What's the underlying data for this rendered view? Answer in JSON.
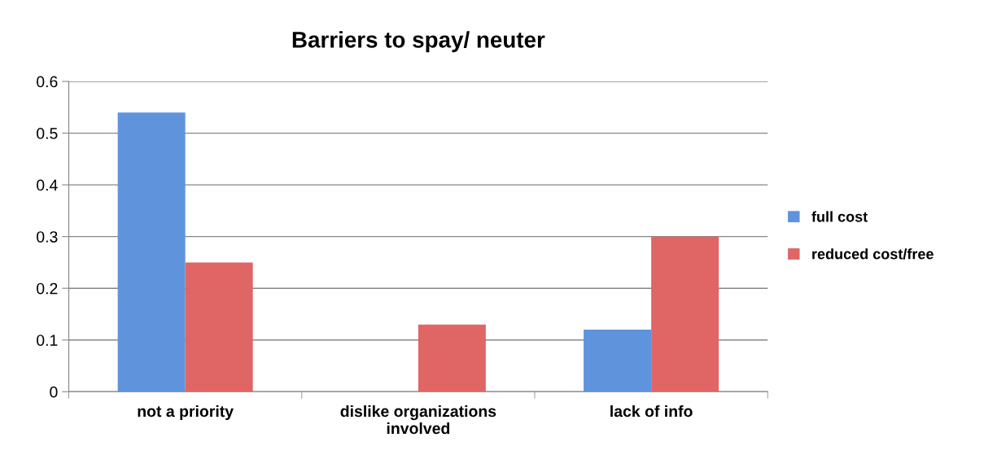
{
  "chart_data": {
    "type": "bar",
    "title": "Barriers to spay/ neuter",
    "categories": [
      "not a priority",
      "dislike organizations\ninvolved",
      "lack of info"
    ],
    "series": [
      {
        "name": "full cost",
        "color": "#5f93dc",
        "values": [
          0.54,
          0,
          0.12
        ]
      },
      {
        "name": "reduced cost/free",
        "color": "#e06565",
        "values": [
          0.25,
          0.13,
          0.3
        ]
      }
    ],
    "ylim": [
      0,
      0.6
    ],
    "yticks": [
      0,
      0.1,
      0.2,
      0.3,
      0.4,
      0.5,
      0.6
    ],
    "grid": "y",
    "legend": "right"
  }
}
